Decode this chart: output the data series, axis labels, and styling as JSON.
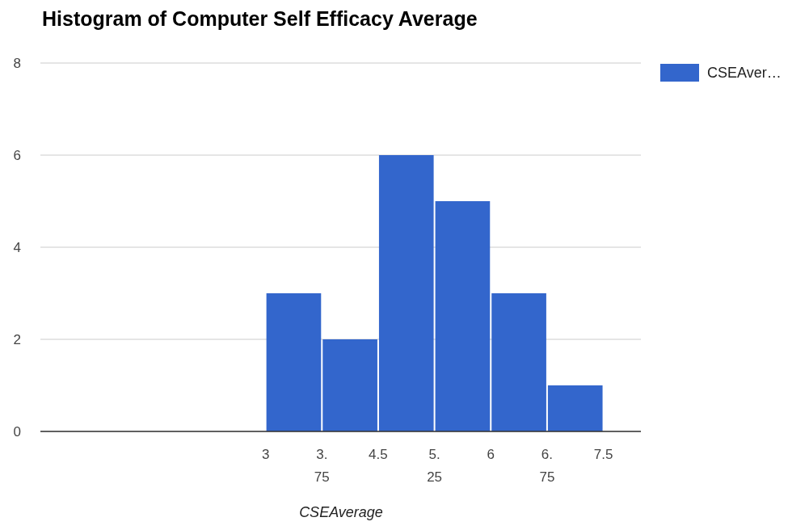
{
  "chart_data": {
    "type": "histogram",
    "title": "Histogram of Computer Self Efficacy Average",
    "xlabel": "CSEAverage",
    "bins": [
      3,
      3.75,
      4.5,
      5.25,
      6,
      6.75,
      7.5
    ],
    "series": [
      {
        "name": "CSEAver…",
        "color": "#3366cc",
        "values": [
          3,
          2,
          6,
          5,
          3,
          1
        ]
      }
    ],
    "xlim": [
      0,
      8
    ],
    "xticks": [
      3,
      3.75,
      4.5,
      5.25,
      6,
      6.75,
      7.5
    ],
    "ylim": [
      0,
      8
    ],
    "yticks": [
      0,
      2,
      4,
      6,
      8
    ],
    "grid": "y",
    "legend": "top right"
  }
}
